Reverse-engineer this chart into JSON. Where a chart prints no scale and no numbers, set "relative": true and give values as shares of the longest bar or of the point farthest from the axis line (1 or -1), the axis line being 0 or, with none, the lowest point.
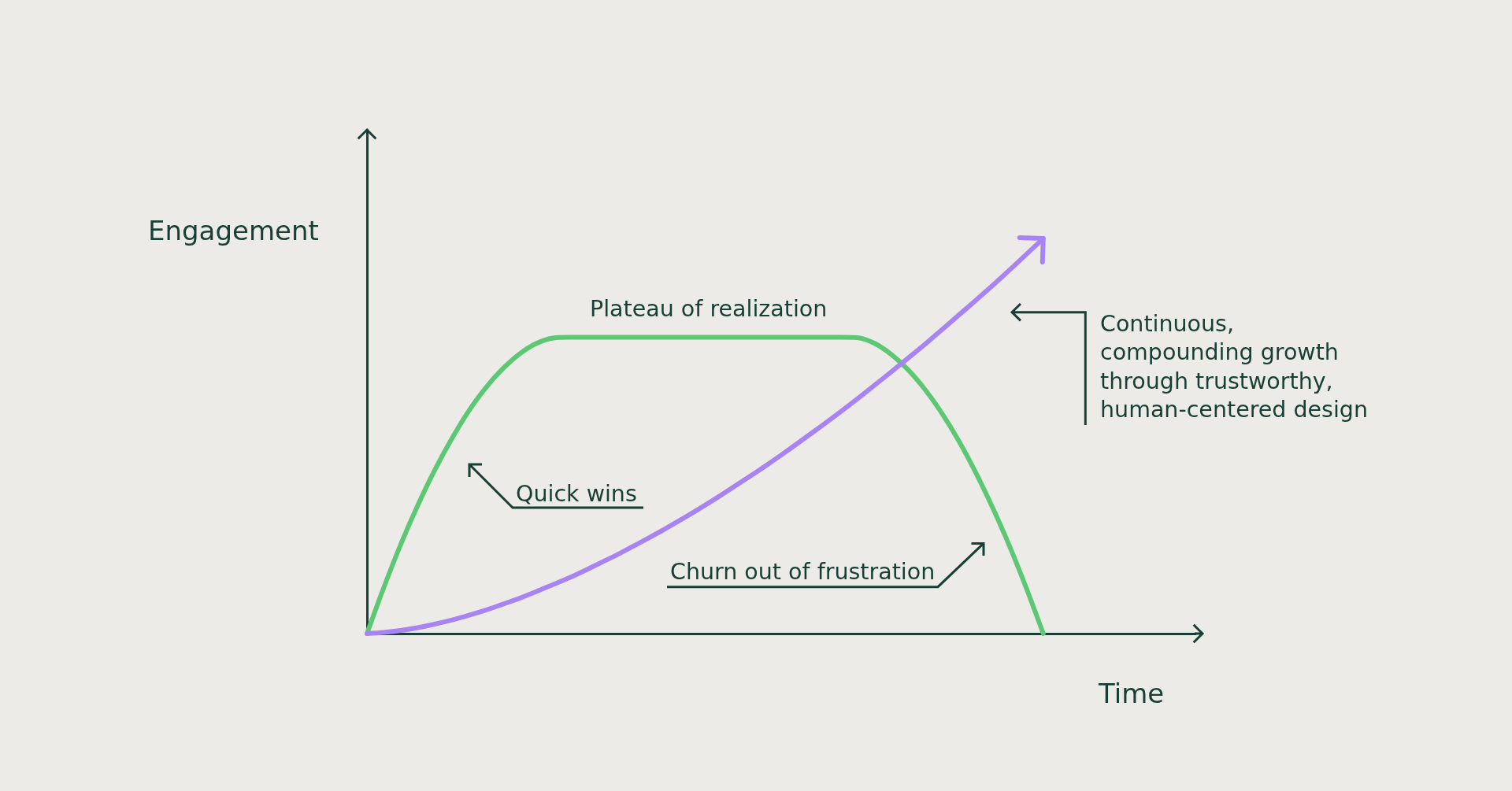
{
  "chart_data": {
    "type": "line",
    "relative": true,
    "xlabel": "Time",
    "ylabel": "Engagement",
    "marker": "none",
    "categories": [
      null,
      null,
      null,
      null,
      null,
      null,
      null,
      null,
      null,
      null,
      null,
      null,
      null,
      null,
      null,
      null,
      null,
      null,
      null,
      null,
      null,
      null,
      null,
      null,
      null,
      null,
      null,
      null,
      null,
      null,
      null,
      null,
      null,
      null,
      null,
      null,
      null,
      null,
      null,
      null,
      null,
      null,
      null,
      null,
      null,
      null,
      null,
      null,
      null,
      null
    ],
    "series": [
      {
        "color": "#5cc873",
        "values": [
          0,
          0.117,
          0.226,
          0.324,
          0.413,
          0.492,
          0.562,
          0.621,
          0.669,
          0.707,
          0.734,
          0.748,
          0.75,
          0.75,
          0.75,
          0.75,
          0.75,
          0.75,
          0.75,
          0.75,
          0.75,
          0.75,
          0.75,
          0.75,
          0.75,
          0.75,
          0.75,
          0.75,
          0.75,
          0.749,
          0.735,
          0.707,
          0.668,
          0.618,
          0.558,
          0.488,
          0.408,
          0.319,
          0.222,
          0.115,
          0,
          null,
          null,
          null,
          null,
          null,
          null,
          null,
          null,
          null
        ]
      },
      {
        "color": "#a883f3",
        "values": [
          0,
          0.003,
          0.008,
          0.015,
          0.024,
          0.034,
          0.046,
          0.059,
          0.074,
          0.089,
          0.106,
          0.124,
          0.142,
          0.162,
          0.183,
          0.204,
          0.227,
          0.25,
          0.274,
          0.299,
          0.325,
          0.352,
          0.38,
          0.408,
          0.437,
          0.467,
          0.498,
          0.529,
          0.561,
          0.594,
          0.628,
          0.662,
          0.697,
          0.732,
          0.769,
          0.806,
          0.843,
          0.881,
          0.92,
          0.96,
          1,
          null,
          null,
          null,
          null,
          null,
          null,
          null,
          null,
          null
        ]
      }
    ],
    "annotations": [
      "Plateau of realization",
      "Quick wins",
      "Churn out of frustration",
      "Continuous,\ncompounding growth\nthrough trustworthy,\nhuman-centered design"
    ]
  }
}
